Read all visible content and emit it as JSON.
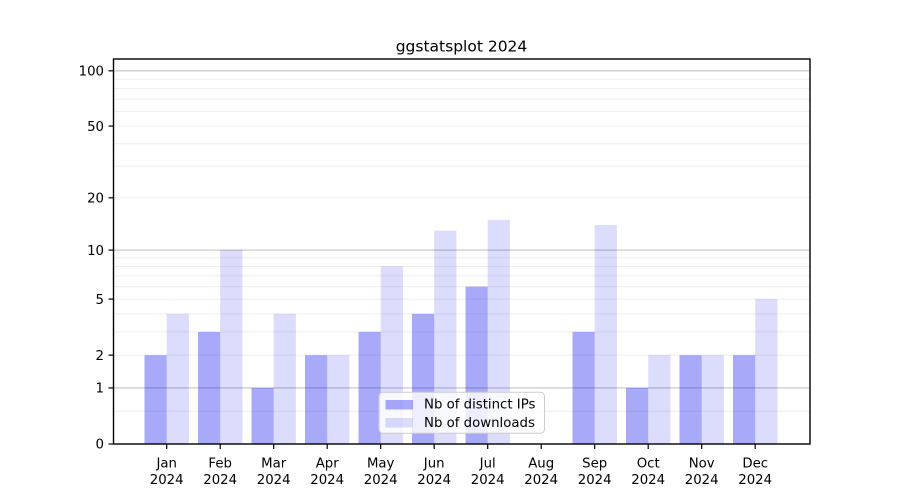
{
  "window": {
    "background": "#ffffff"
  },
  "chart_data": {
    "type": "bar",
    "title": "ggstatsplot 2024",
    "categories": [
      "Jan 2024",
      "Feb 2024",
      "Mar 2024",
      "Apr 2024",
      "May 2024",
      "Jun 2024",
      "Jul 2024",
      "Aug 2024",
      "Sep 2024",
      "Oct 2024",
      "Nov 2024",
      "Dec 2024"
    ],
    "series": [
      {
        "name": "Nb of distinct IPs",
        "apparent_color": "#a9a9f7",
        "base_color": "#0a0af0",
        "opacity": 0.35,
        "values": [
          2,
          3,
          1,
          2,
          3,
          4,
          6,
          0,
          3,
          1,
          2,
          2
        ]
      },
      {
        "name": "Nb of downloads",
        "apparent_color": "#dcdcfa",
        "base_color": "#0a0af0",
        "opacity": 0.143,
        "values": [
          4,
          10,
          4,
          2,
          8,
          13,
          15,
          0,
          14,
          2,
          2,
          5
        ]
      }
    ],
    "y_axis": {
      "scale": "pseudo-log (position proportional to log10 of 1+value)",
      "tick_values": [
        0,
        1,
        2,
        5,
        10,
        20,
        50,
        100
      ],
      "tick_labels": [
        "0",
        "1",
        "2",
        "5",
        "10",
        "20",
        "50",
        "100"
      ],
      "major_gridlines": [
        1,
        10,
        100
      ],
      "minor_gridlines": [
        0.5,
        2,
        3,
        4,
        5,
        6,
        7,
        8,
        9,
        20,
        30,
        40,
        50,
        60,
        70,
        80,
        90
      ],
      "range": [
        0,
        116
      ]
    },
    "x_axis": {
      "tick_count": 12
    },
    "grid": "on",
    "legend": {
      "location": "inside plot, lower center",
      "entries": [
        "Nb of distinct IPs",
        "Nb of downloads"
      ]
    },
    "colors": {
      "major_gridline": "#c3c3c3",
      "minor_gridline": "#ededed",
      "axis": "#000000",
      "legend_border": "#cccccc",
      "legend_bg": "#ffffff"
    }
  }
}
